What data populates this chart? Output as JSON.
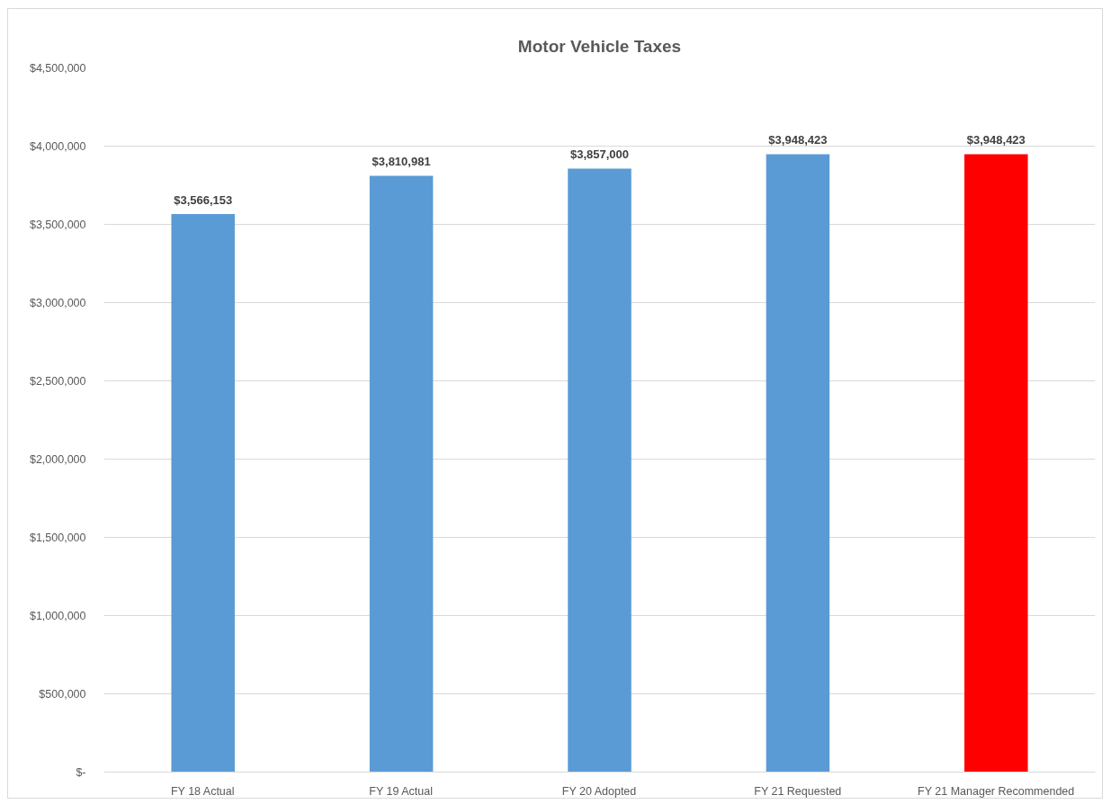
{
  "chart_data": {
    "type": "bar",
    "title": "Motor Vehicle Taxes",
    "categories": [
      "FY 18 Actual",
      "FY 19 Actual",
      "FY 20 Adopted",
      "FY 21 Requested",
      "FY 21 Manager Recommended"
    ],
    "values": [
      3566153,
      3810981,
      3857000,
      3948423,
      3948423
    ],
    "colors": [
      "#5b9bd5",
      "#5b9bd5",
      "#5b9bd5",
      "#5b9bd5",
      "#ff0000"
    ],
    "value_labels": [
      "$3,566,153",
      "$3,810,981",
      "$3,857,000",
      "$3,948,423",
      "$3,948,423"
    ],
    "ylim": [
      0,
      4500000
    ],
    "yticks": [
      {
        "value": 0,
        "label": "$-"
      },
      {
        "value": 500000,
        "label": "$500,000"
      },
      {
        "value": 1000000,
        "label": "$1,000,000"
      },
      {
        "value": 1500000,
        "label": "$1,500,000"
      },
      {
        "value": 2000000,
        "label": "$2,000,000"
      },
      {
        "value": 2500000,
        "label": "$2,500,000"
      },
      {
        "value": 3000000,
        "label": "$3,000,000"
      },
      {
        "value": 3500000,
        "label": "$3,500,000"
      },
      {
        "value": 4000000,
        "label": "$4,000,000"
      },
      {
        "value": 4500000,
        "label": "$4,500,000"
      }
    ],
    "grid": "y"
  }
}
